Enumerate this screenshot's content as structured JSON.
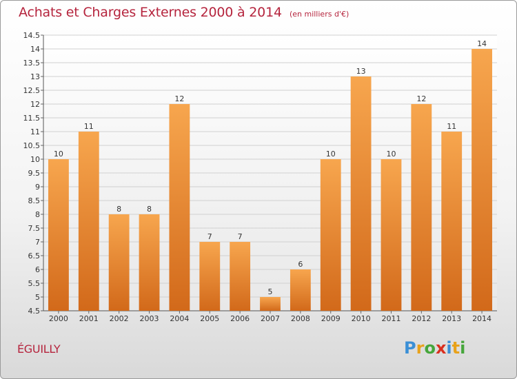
{
  "title": "Achats et Charges Externes 2000 à 2014",
  "unit_note": "(en milliers d'€)",
  "commune": "ÉGUILLY",
  "logo": {
    "letters": [
      "P",
      "r",
      "o",
      "x",
      "i",
      "t",
      "i"
    ],
    "colors": [
      "#3a8fd6",
      "#e8a21b",
      "#46a63b",
      "#d9301f",
      "#3a8fd6",
      "#e8a21b",
      "#46a63b"
    ]
  },
  "colors": {
    "bar_top": "#f7a64e",
    "bar_bottom": "#d2691a",
    "title": "#b5243d"
  },
  "chart_data": {
    "type": "bar",
    "title": "Achats et Charges Externes 2000 à 2014",
    "categories": [
      "2000",
      "2001",
      "2002",
      "2003",
      "2004",
      "2005",
      "2006",
      "2007",
      "2008",
      "2009",
      "2010",
      "2011",
      "2012",
      "2013",
      "2014"
    ],
    "values": [
      10,
      11,
      8,
      8,
      12,
      7,
      7,
      5,
      6,
      10,
      13,
      10,
      12,
      11,
      14
    ],
    "ylim": [
      4.5,
      14.5
    ],
    "yticks": [
      "4.5",
      "5",
      "5.5",
      "6",
      "6.5",
      "7",
      "7.5",
      "8",
      "8.5",
      "9",
      "9.5",
      "10",
      "10.5",
      "11",
      "11.5",
      "12",
      "12.5",
      "13",
      "13.5",
      "14",
      "14.5"
    ],
    "grid": true
  }
}
